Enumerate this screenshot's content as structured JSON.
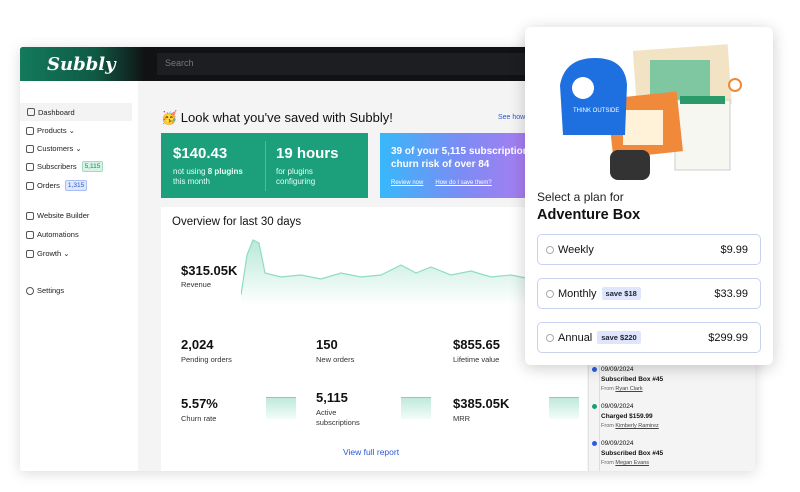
{
  "app": {
    "logo": "Subbly",
    "search_placeholder": "Search"
  },
  "sidebar": {
    "items": [
      {
        "label": "Dashboard",
        "icon": "grid-icon"
      },
      {
        "label": "Products ⌄",
        "icon": "box-icon"
      },
      {
        "label": "Customers ⌄",
        "icon": "users-icon"
      },
      {
        "label": "Subscribers",
        "badge": "5,115",
        "icon": "refresh-icon"
      },
      {
        "label": "Orders",
        "badge": "1,315",
        "icon": "bag-icon"
      },
      {
        "label": "Website Builder",
        "icon": "monitor-icon"
      },
      {
        "label": "Automations",
        "icon": "bolt-icon"
      },
      {
        "label": "Growth ⌄",
        "icon": "chart-icon"
      },
      {
        "label": "Settings",
        "icon": "gear-icon"
      }
    ]
  },
  "savings": {
    "title": "🥳 Look what you've saved with Subbly!",
    "see_how": "See how",
    "money": "$140.43",
    "money_pre": "not using ",
    "money_bold": "8 plugins",
    "money_post": "this month",
    "hours": "19 hours",
    "hours_l1": "for plugins",
    "hours_l2": "configuring"
  },
  "churn": {
    "text": "39 of your 5,115 subscriptions have a churn risk of over 84",
    "review": "Review now",
    "how": "How do I save them?"
  },
  "overview": {
    "title": "Overview for last 30 days",
    "revenue": "$315.05K",
    "revenue_label": "Revenue",
    "metrics": [
      {
        "value": "2,024",
        "label": "Pending orders"
      },
      {
        "value": "150",
        "label": "New orders"
      },
      {
        "value": "$855.65",
        "label": "Lifetime value"
      },
      {
        "value": "5.57%",
        "label": "Churn rate"
      },
      {
        "value": "5,115",
        "label": "Active subscriptions"
      },
      {
        "value": "$385.05K",
        "label": "MRR"
      }
    ],
    "view_full": "View full report"
  },
  "timeline": [
    {
      "date": "09/09/2024",
      "title": "Subscribed Box #45",
      "from": "From ",
      "name": "Ryan Clark",
      "color": "#2d5be3"
    },
    {
      "date": "09/09/2024",
      "title": "Charged $159.99",
      "from": "From ",
      "name": "Kimberly Ramirez",
      "color": "#1c9f6b"
    },
    {
      "date": "09/09/2024",
      "title": "Subscribed Box #45",
      "from": "From ",
      "name": "Megan Evans",
      "color": "#2d5be3"
    }
  ],
  "plan": {
    "select": "Select a plan for",
    "name": "Adventure Box",
    "bag_text": "THINK OUTSIDE",
    "options": [
      {
        "label": "Weekly",
        "save": "",
        "price": "$9.99"
      },
      {
        "label": "Monthly",
        "save": "save $18",
        "price": "$33.99"
      },
      {
        "label": "Annual",
        "save": "save $220",
        "price": "$299.99"
      }
    ]
  }
}
